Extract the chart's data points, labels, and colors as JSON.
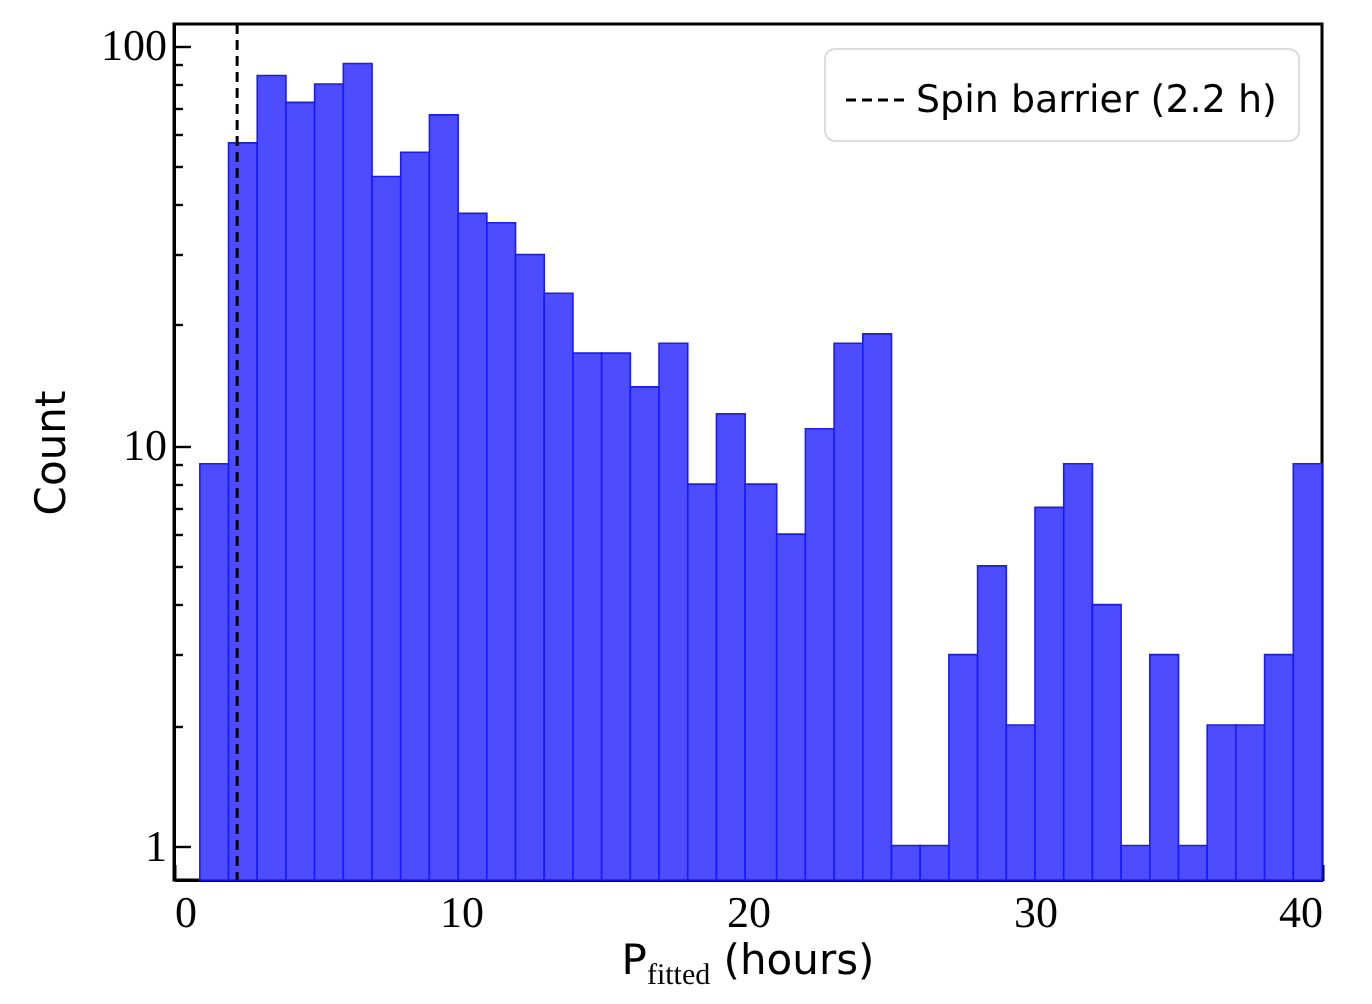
{
  "chart_data": {
    "type": "histogram",
    "xlabel": "P$_{fitted}$ (hours)",
    "ylabel": "Count",
    "color": "#4d4dff",
    "bins": [
      0.9,
      1.9,
      2.9,
      3.9,
      4.9,
      5.9,
      6.9,
      7.9,
      8.9,
      9.9,
      10.9,
      11.9,
      12.9,
      13.9,
      14.9,
      15.9,
      16.9,
      17.9,
      18.9,
      19.9,
      21.0,
      22.0,
      23.0,
      24.0,
      25.0,
      26.0,
      27.0,
      28.0,
      29.0,
      30.0,
      31.0,
      32.0,
      33.0,
      34.0,
      35.0,
      36.0,
      37.0,
      38.0,
      39.0,
      40.0
    ],
    "values": [
      9,
      57,
      84,
      72,
      80,
      90,
      47,
      54,
      67,
      38,
      36,
      30,
      24,
      17,
      17,
      14,
      18,
      8,
      12,
      8,
      6,
      11,
      18,
      19,
      1,
      1,
      3,
      5,
      2,
      7,
      9,
      4,
      1,
      3,
      1,
      2,
      2,
      3,
      9
    ],
    "log": "y",
    "xlim": [
      0,
      40
    ],
    "xticks": [
      0,
      10,
      20,
      30,
      40
    ],
    "ylim": [
      0.82,
      113
    ],
    "yticks": [
      1,
      {
        "value": 2,
        "label": null
      },
      {
        "value": 3,
        "label": null
      },
      {
        "value": 4,
        "label": null
      },
      {
        "value": 5,
        "label": null
      },
      {
        "value": 6,
        "label": null
      },
      {
        "value": 7,
        "label": null
      },
      {
        "value": 8,
        "label": null
      },
      {
        "value": 9,
        "label": null
      },
      10,
      {
        "value": 20,
        "label": null
      },
      {
        "value": 30,
        "label": null
      },
      {
        "value": 40,
        "label": null
      },
      {
        "value": 50,
        "label": null
      },
      {
        "value": 60,
        "label": null
      },
      {
        "value": 70,
        "label": null
      },
      {
        "value": 80,
        "label": null
      },
      {
        "value": 90,
        "label": null
      },
      100
    ],
    "ref_lines": [
      {
        "axis": "x",
        "value": 2.2,
        "label": "Spin barrier (2.2 h)",
        "color": "#000000",
        "line_style": "dashed"
      }
    ],
    "legend": "top right",
    "grid": false
  }
}
